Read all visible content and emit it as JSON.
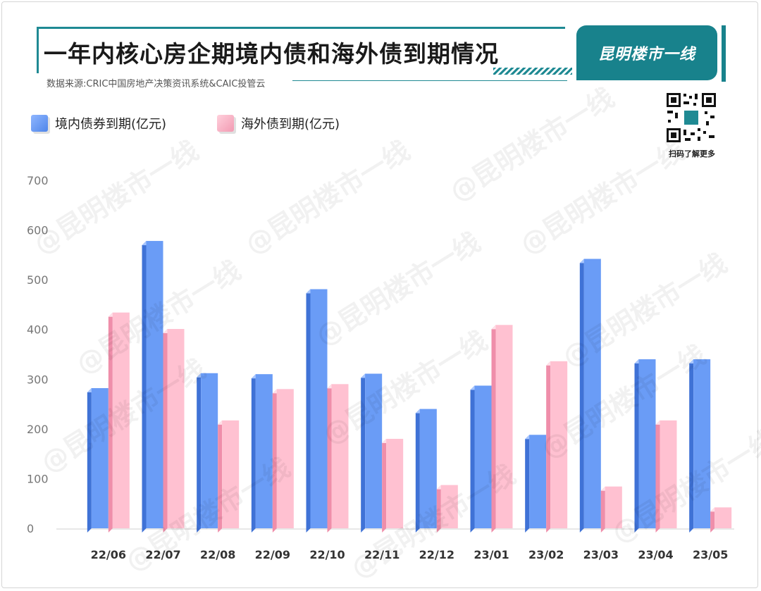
{
  "header": {
    "title": "一年内核心房企期境内债和海外债到期情况",
    "source": "数据来源:CRIC中国房地产决策资讯系统&CAIC投管云",
    "brand": "昆明楼市一线",
    "qr_caption": "扫码了解更多",
    "watermark": "@昆明楼市一线"
  },
  "colors": {
    "accent": "#18828c",
    "domestic": "#5a8ff0",
    "overseas": "#f7a9be"
  },
  "chart_data": {
    "type": "bar",
    "title": "一年内核心房企期境内债和海外债到期情况",
    "categories": [
      "22/06",
      "22/07",
      "22/08",
      "22/09",
      "22/10",
      "22/11",
      "22/12",
      "23/01",
      "23/02",
      "23/03",
      "23/04",
      "23/05"
    ],
    "series": [
      {
        "name": "境内债券到期(亿元)",
        "values": [
          282,
          578,
          312,
          310,
          481,
          311,
          240,
          287,
          188,
          542,
          340,
          340
        ]
      },
      {
        "name": "海外债到期(亿元)",
        "values": [
          434,
          401,
          217,
          280,
          290,
          180,
          87,
          409,
          336,
          84,
          217,
          42
        ]
      }
    ],
    "yticks": [
      "0",
      "100",
      "200",
      "300",
      "400",
      "500",
      "600",
      "700"
    ],
    "ylim": [
      0,
      700
    ],
    "legend_position": "top-left",
    "grid": false
  }
}
